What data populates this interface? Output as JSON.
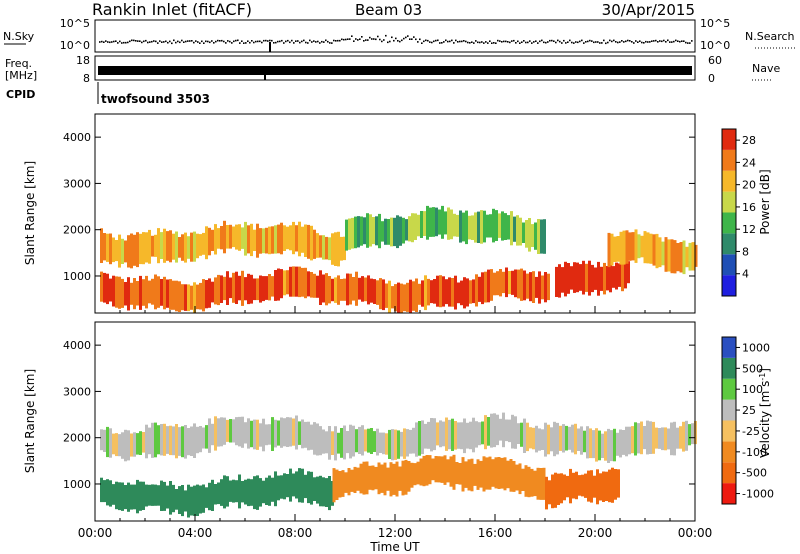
{
  "header": {
    "station": "Rankin Inlet (fitACF)",
    "beam": "Beam 03",
    "date": "30/Apr/2015"
  },
  "top_strip": {
    "left_label": "N.Sky",
    "right_label": "N.Search",
    "left_ticks": [
      "10^5",
      "10^0"
    ],
    "right_ticks": [
      "10^5",
      "10^0"
    ]
  },
  "freq_strip": {
    "left_label_1": "Freq.",
    "left_label_2": "[MHz]",
    "right_label": "Nave",
    "left_ticks": [
      "18",
      "8"
    ],
    "right_ticks": [
      "60",
      "0"
    ]
  },
  "cpid": {
    "label": "CPID",
    "value": "twofsound 3503"
  },
  "colors": {
    "power": [
      "#1f1fe0",
      "#1f4fb5",
      "#2f8a6a",
      "#3fb54a",
      "#c8d84a",
      "#f6b82a",
      "#f07a1a",
      "#e02a10"
    ],
    "velocity": [
      "#ee1a10",
      "#f06a10",
      "#f08a20",
      "#f5c060",
      "#bdbdbd",
      "#5ec940",
      "#2e8a5a",
      "#2a4fc0"
    ]
  },
  "chart_data": [
    {
      "type": "heatmap",
      "name": "power-panel",
      "ylabel": "Slant Range [km]",
      "yticks": [
        "1000",
        "2000",
        "3000",
        "4000"
      ],
      "ylim": [
        200,
        4500
      ],
      "xlim": [
        0,
        24
      ],
      "colorbar": {
        "label": "Power [dB]",
        "ticks": [
          "4",
          "8",
          "12",
          "16",
          "20",
          "24",
          "28"
        ],
        "range": [
          0,
          30
        ]
      },
      "features": [
        {
          "t_start": 0.2,
          "t_end": 18.2,
          "range_km": 700,
          "value_db": 26
        },
        {
          "t_start": 0.2,
          "t_end": 10.0,
          "range_km": 1700,
          "value_db": 22
        },
        {
          "t_start": 10.0,
          "t_end": 18.0,
          "range_km": 2000,
          "value_db": 14
        },
        {
          "t_start": 18.4,
          "t_end": 21.4,
          "range_km": 950,
          "value_db": 28
        },
        {
          "t_start": 20.5,
          "t_end": 24.0,
          "range_km": 1500,
          "value_db": 22
        }
      ]
    },
    {
      "type": "heatmap",
      "name": "velocity-panel",
      "ylabel": "Slant Range [km]",
      "yticks": [
        "1000",
        "2000",
        "3000",
        "4000"
      ],
      "ylim": [
        200,
        4500
      ],
      "xlim": [
        0,
        24
      ],
      "xticks": [
        "00:00",
        "04:00",
        "08:00",
        "12:00",
        "16:00",
        "20:00",
        "00:00"
      ],
      "xlabel": "Time UT",
      "colorbar": {
        "label": "Velocity [m s",
        "label_exponent": "-1",
        "label_close": "]",
        "ticks": [
          "1000",
          "500",
          "100",
          "25",
          "-25",
          "-100",
          "-500",
          "-1000"
        ]
      },
      "features": [
        {
          "t_start": 0.2,
          "t_end": 9.5,
          "range_km": 800,
          "value_ms": 150
        },
        {
          "t_start": 0.2,
          "t_end": 24.0,
          "range_km": 2000,
          "value_ms": 0
        },
        {
          "t_start": 9.5,
          "t_end": 18.0,
          "range_km": 1150,
          "value_ms": -150
        },
        {
          "t_start": 18.0,
          "t_end": 21.0,
          "range_km": 950,
          "value_ms": -600
        }
      ]
    }
  ]
}
